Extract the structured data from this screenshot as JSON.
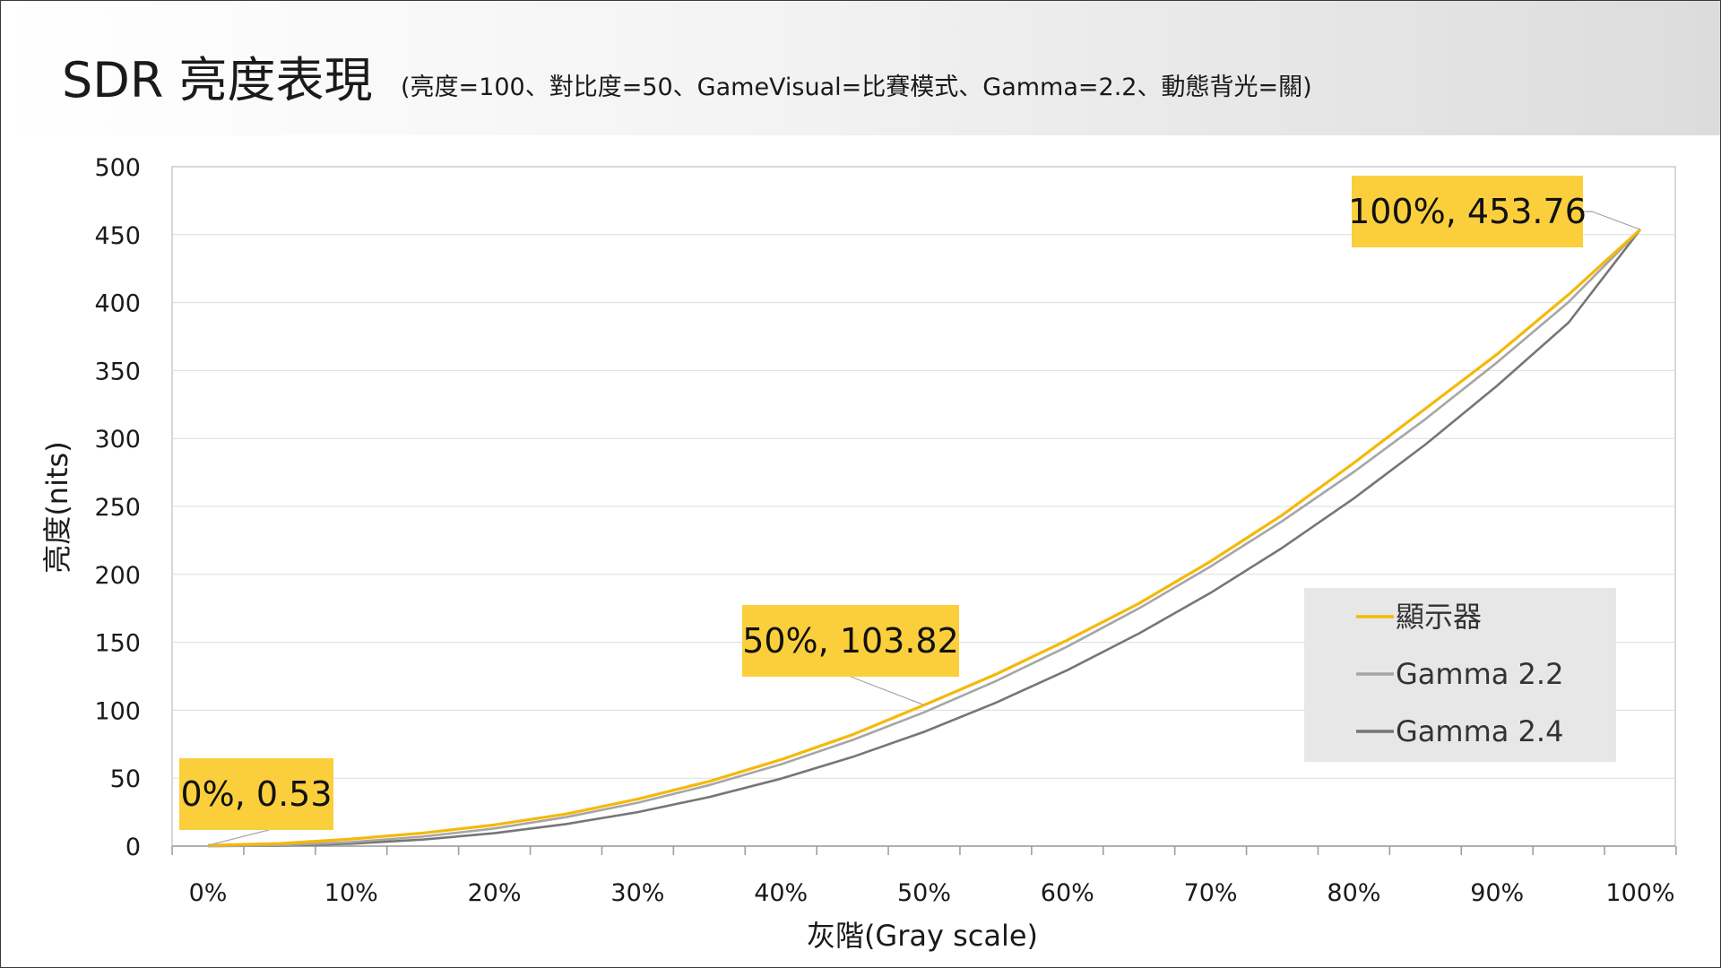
{
  "header": {
    "title": "SDR 亮度表現",
    "subtitle": "(亮度=100、對比度=50、GameVisual=比賽模式、Gamma=2.2、動態背光=關)"
  },
  "colors": {
    "display": "#F5B80A",
    "gamma22": "#A6A6A6",
    "gamma24": "#767676",
    "label_bg": "#FBCF3C"
  },
  "chart_data": {
    "type": "line",
    "title": "SDR 亮度表現",
    "xlabel": "灰階(Gray scale)",
    "ylabel": "亮度(nits)",
    "ylim": [
      0,
      500
    ],
    "y_ticks": [
      "0",
      "50",
      "100",
      "150",
      "200",
      "250",
      "300",
      "350",
      "400",
      "450",
      "500"
    ],
    "x_ticks": [
      "0%",
      "10%",
      "20%",
      "30%",
      "40%",
      "50%",
      "60%",
      "70%",
      "80%",
      "90%",
      "100%"
    ],
    "x": [
      0,
      5,
      10,
      15,
      20,
      25,
      30,
      35,
      40,
      45,
      50,
      55,
      60,
      65,
      70,
      75,
      80,
      85,
      90,
      95,
      100
    ],
    "grid": true,
    "legend_position": "right",
    "series": [
      {
        "name": "顯示器",
        "values": [
          0.53,
          1.9,
          5.2,
          9.6,
          15.6,
          23.6,
          34.6,
          47.6,
          63.6,
          82.0,
          103.82,
          126.4,
          151.6,
          178.6,
          209.6,
          243.6,
          282.0,
          322.0,
          362.0,
          406.0,
          453.76
        ]
      },
      {
        "name": "Gamma 2.2",
        "values": [
          0.0,
          0.6,
          2.9,
          7.0,
          13.0,
          21.3,
          31.9,
          44.9,
          60.2,
          78.1,
          98.5,
          121.4,
          146.9,
          175.0,
          205.8,
          239.2,
          275.4,
          314.3,
          356.0,
          400.5,
          453.76
        ]
      },
      {
        "name": "Gamma 2.4",
        "values": [
          0.0,
          0.3,
          1.8,
          4.8,
          9.5,
          16.2,
          25.0,
          36.1,
          49.6,
          65.6,
          84.1,
          105.5,
          129.5,
          156.5,
          186.4,
          219.5,
          255.9,
          295.6,
          338.8,
          385.4,
          453.76
        ]
      }
    ],
    "annotations": [
      {
        "text": "0%, 0.53",
        "x": 0,
        "y": 0.53
      },
      {
        "text": "50%, 103.82",
        "x": 50,
        "y": 103.82
      },
      {
        "text": "100%, 453.76",
        "x": 100,
        "y": 453.76
      }
    ]
  }
}
